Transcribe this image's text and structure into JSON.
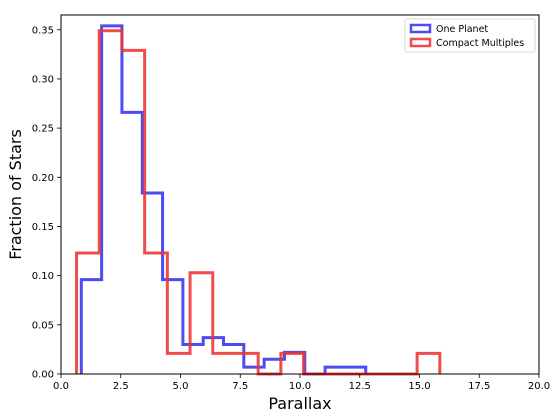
{
  "chart_data": {
    "type": "histogram-step",
    "title": "",
    "xlabel": "Parallax",
    "ylabel": "Fraction of Stars",
    "xlim": [
      0.0,
      20.0
    ],
    "ylim": [
      0.0,
      0.365
    ],
    "xticks": [
      0.0,
      2.5,
      5.0,
      7.5,
      10.0,
      12.5,
      15.0,
      17.5,
      20.0
    ],
    "xtick_labels": [
      "0.0",
      "2.5",
      "5.0",
      "7.5",
      "10.0",
      "12.5",
      "15.0",
      "17.5",
      "20.0"
    ],
    "yticks": [
      0.0,
      0.05,
      0.1,
      0.15,
      0.2,
      0.25,
      0.3,
      0.35
    ],
    "ytick_labels": [
      "0.00",
      "0.05",
      "0.10",
      "0.15",
      "0.20",
      "0.25",
      "0.30",
      "0.35"
    ],
    "grid": false,
    "legend_position": "top-right",
    "series": [
      {
        "name": "One Planet",
        "color": "#3333ee",
        "edges": [
          0.85,
          1.7,
          2.55,
          3.4,
          4.25,
          5.1,
          5.95,
          6.8,
          7.65,
          8.5,
          9.35,
          10.2,
          11.05,
          11.9,
          12.75
        ],
        "values": [
          0.096,
          0.354,
          0.266,
          0.184,
          0.096,
          0.03,
          0.037,
          0.03,
          0.007,
          0.015,
          0.022,
          0.0,
          0.007,
          0.007
        ]
      },
      {
        "name": "Compact Multiples",
        "color": "#ee3333",
        "edges": [
          0.65,
          1.6,
          2.55,
          3.5,
          4.45,
          5.4,
          6.35,
          7.3,
          8.25,
          9.2,
          10.15,
          11.1,
          12.05,
          13.0,
          13.95,
          14.9,
          15.85
        ],
        "values": [
          0.123,
          0.349,
          0.329,
          0.123,
          0.021,
          0.103,
          0.021,
          0.021,
          0.0,
          0.021,
          0.0,
          0.0,
          0.0,
          0.0,
          0.0,
          0.021
        ]
      }
    ]
  }
}
